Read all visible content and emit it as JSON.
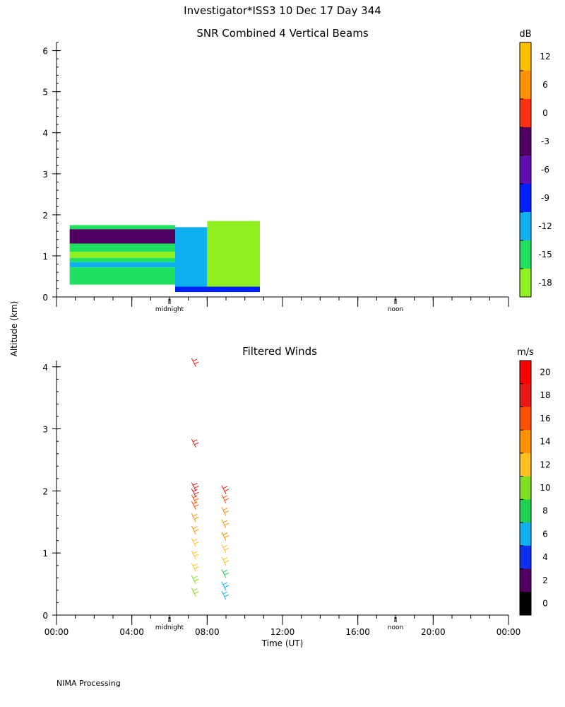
{
  "figure": {
    "title": "Investigator*ISS3  10 Dec 17 Day 344",
    "ylabel": "Altitude (km)",
    "footer": "NIMA Processing"
  },
  "chart_data": [
    {
      "type": "heatmap",
      "title": "SNR Combined 4 Vertical Beams",
      "ylabel": "Altitude (km)",
      "xlim": [
        0,
        24
      ],
      "ylim": [
        0,
        6.2
      ],
      "yticks": [
        0,
        1,
        2,
        3,
        4,
        5,
        6
      ],
      "day_markers": [
        {
          "label": "midnight",
          "x": 6
        },
        {
          "label": "noon",
          "x": 18
        }
      ],
      "colorbar": {
        "unit": "dB",
        "ticks": [
          "12",
          "6",
          "0",
          "-3",
          "-6",
          "-9",
          "-12",
          "-15",
          "-18"
        ],
        "bins": [
          {
            "color": "#ffc000"
          },
          {
            "color": "#ff9000"
          },
          {
            "color": "#ff3010"
          },
          {
            "color": "#500060"
          },
          {
            "color": "#6010b0"
          },
          {
            "color": "#0020ff"
          },
          {
            "color": "#10b0f0"
          },
          {
            "color": "#20e060"
          },
          {
            "color": "#90f020"
          }
        ]
      },
      "regions": [
        {
          "x": [
            0.7,
            6.3
          ],
          "y": [
            1.65,
            1.75
          ],
          "color": "#20e060"
        },
        {
          "x": [
            0.7,
            6.3
          ],
          "y": [
            1.3,
            1.65
          ],
          "color": "#500060"
        },
        {
          "x": [
            0.7,
            6.3
          ],
          "y": [
            1.1,
            1.3
          ],
          "color": "#20e060"
        },
        {
          "x": [
            0.7,
            6.3
          ],
          "y": [
            0.95,
            1.1
          ],
          "color": "#90f020"
        },
        {
          "x": [
            0.7,
            6.3
          ],
          "y": [
            0.85,
            0.95
          ],
          "color": "#20e060"
        },
        {
          "x": [
            0.7,
            6.3
          ],
          "y": [
            0.72,
            0.85
          ],
          "color": "#10b0f0"
        },
        {
          "x": [
            0.7,
            6.3
          ],
          "y": [
            0.3,
            0.72
          ],
          "color": "#20e060"
        },
        {
          "x": [
            6.3,
            8.0
          ],
          "y": [
            0.2,
            1.7
          ],
          "color": "#10b0f0"
        },
        {
          "x": [
            8.0,
            10.8
          ],
          "y": [
            0.2,
            1.85
          ],
          "color": "#90f020"
        },
        {
          "x": [
            6.3,
            10.8
          ],
          "y": [
            0.12,
            0.25
          ],
          "color": "#0020ff"
        }
      ]
    },
    {
      "type": "scatter",
      "title": "Filtered Winds",
      "xlabel": "Time (UT)",
      "ylabel": "Altitude (km)",
      "xlim": [
        0,
        24
      ],
      "ylim": [
        0,
        4.1
      ],
      "yticks": [
        0,
        1,
        2,
        3,
        4
      ],
      "xticks": [
        "00:00",
        "04:00",
        "08:00",
        "12:00",
        "16:00",
        "20:00",
        "00:00"
      ],
      "day_markers": [
        {
          "label": "midnight",
          "x": 6
        },
        {
          "label": "noon",
          "x": 18
        }
      ],
      "colorbar": {
        "unit": "m/s",
        "ticks": [
          "20",
          "18",
          "16",
          "14",
          "12",
          "10",
          "8",
          "6",
          "4",
          "2",
          "0"
        ],
        "bins": [
          {
            "color": "#ff0000"
          },
          {
            "color": "#e81818"
          },
          {
            "color": "#ff5000"
          },
          {
            "color": "#ff9000"
          },
          {
            "color": "#ffc020"
          },
          {
            "color": "#80e020"
          },
          {
            "color": "#20d050"
          },
          {
            "color": "#10b0f0"
          },
          {
            "color": "#1030f0"
          },
          {
            "color": "#500060"
          },
          {
            "color": "#000000"
          }
        ]
      },
      "series": [
        {
          "x": 7.4,
          "points": [
            [
              0.3,
              11
            ],
            [
              0.5,
              12
            ],
            [
              0.7,
              13
            ],
            [
              0.9,
              14
            ],
            [
              1.1,
              14
            ],
            [
              1.3,
              15
            ],
            [
              1.5,
              16
            ],
            [
              1.7,
              17
            ],
            [
              1.8,
              18
            ],
            [
              1.9,
              19
            ],
            [
              2.0,
              19
            ],
            [
              2.7,
              19
            ],
            [
              4.0,
              19
            ]
          ]
        },
        {
          "x": 9.0,
          "points": [
            [
              0.25,
              7
            ],
            [
              0.4,
              8
            ],
            [
              0.6,
              10
            ],
            [
              0.8,
              13
            ],
            [
              1.0,
              14
            ],
            [
              1.2,
              15
            ],
            [
              1.4,
              16
            ],
            [
              1.6,
              16
            ],
            [
              1.8,
              18
            ],
            [
              1.95,
              19
            ]
          ]
        }
      ]
    }
  ]
}
